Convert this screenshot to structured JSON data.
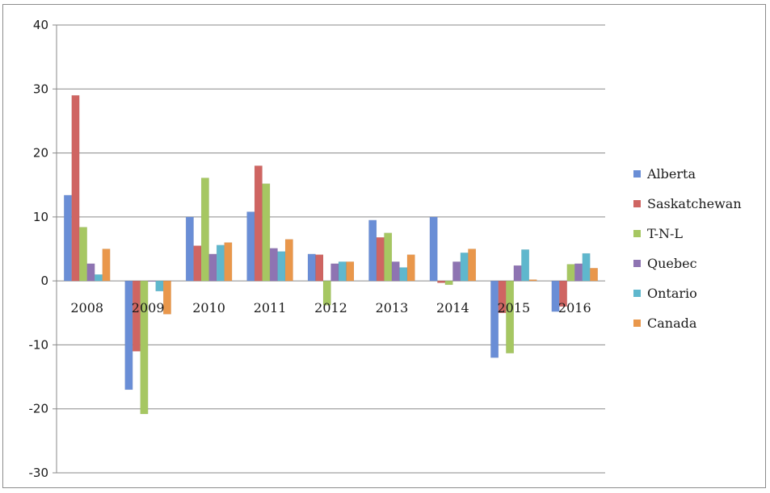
{
  "chart_data": {
    "type": "bar",
    "title": "",
    "xlabel": "",
    "ylabel": "",
    "ylim": [
      -30,
      40
    ],
    "yticks": [
      40,
      30,
      20,
      10,
      0,
      -10,
      -20,
      -30
    ],
    "grid": true,
    "legend_position": "right",
    "categories": [
      "2008",
      "2009",
      "2010",
      "2011",
      "2012",
      "2013",
      "2014",
      "2015",
      "2016"
    ],
    "series": [
      {
        "name": "Alberta",
        "color": "#6a8ed6",
        "values": [
          13.4,
          -17,
          10,
          10.8,
          4.2,
          9.5,
          10,
          -12,
          -4.8
        ]
      },
      {
        "name": "Saskatchewan",
        "color": "#cf6562",
        "values": [
          29,
          -11,
          5.5,
          18,
          4.1,
          6.8,
          -0.3,
          -5,
          -4
        ]
      },
      {
        "name": "T-N-L",
        "color": "#a6c762",
        "values": [
          8.4,
          -20.8,
          16.1,
          15.2,
          -3.8,
          7.5,
          -0.6,
          -11.3,
          2.6
        ]
      },
      {
        "name": "Quebec",
        "color": "#8e74b2",
        "values": [
          2.7,
          -0.1,
          4.2,
          5.1,
          2.7,
          3,
          3,
          2.4,
          2.7
        ]
      },
      {
        "name": "Ontario",
        "color": "#5fb7cd",
        "values": [
          1,
          -1.6,
          5.6,
          4.6,
          3,
          2.1,
          4.4,
          4.9,
          4.3
        ]
      },
      {
        "name": "Canada",
        "color": "#e9974b",
        "values": [
          5,
          -5.2,
          6,
          6.5,
          3,
          4.1,
          5,
          0.2,
          2
        ]
      }
    ]
  }
}
